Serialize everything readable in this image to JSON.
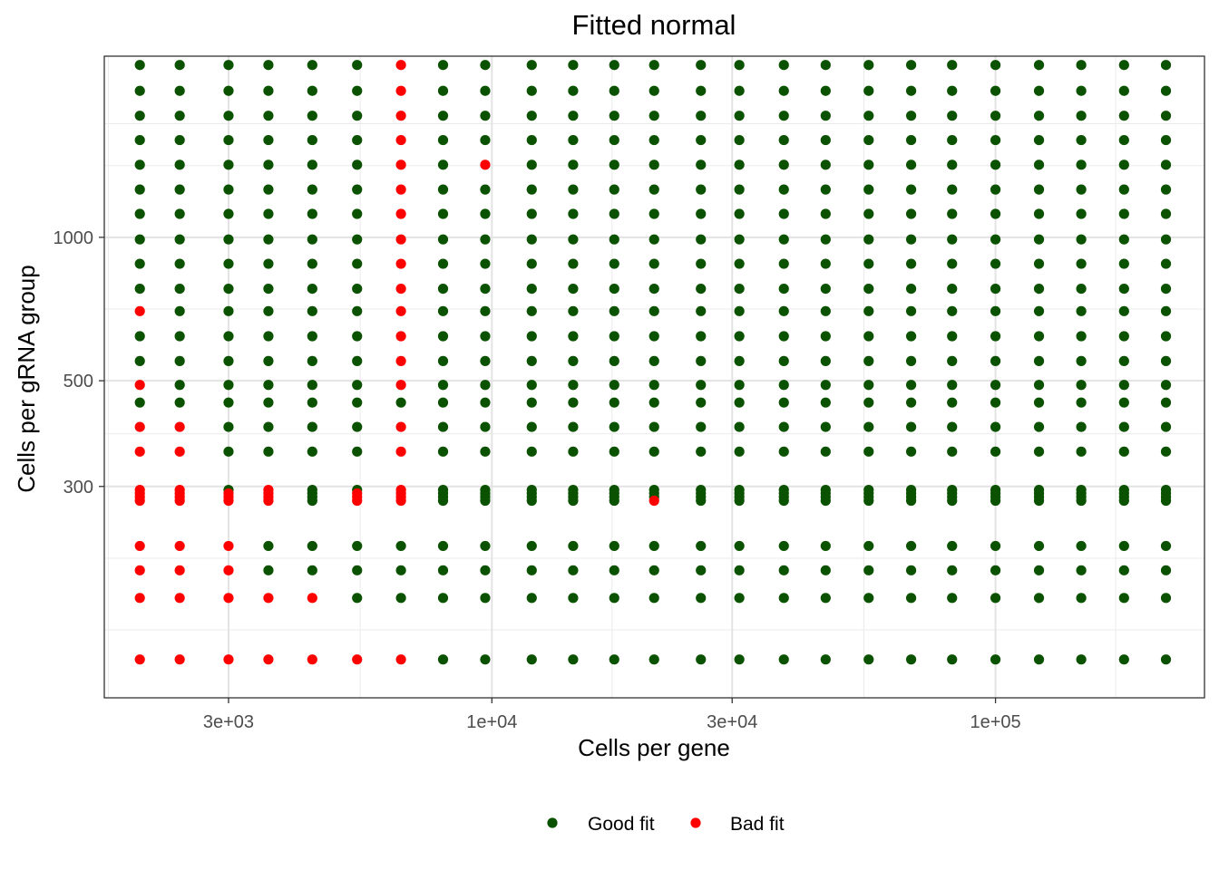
{
  "chart_data": {
    "type": "scatter",
    "title": "Fitted normal",
    "xlabel": "Cells per gene",
    "ylabel": "Cells per gRNA group",
    "x_scale": "log10",
    "y_scale": "log10",
    "xlim": [
      1700,
      260000
    ],
    "ylim": [
      108,
      2400
    ],
    "x_ticks": [
      3000,
      10000,
      30000,
      100000
    ],
    "x_tick_labels": [
      "3e+03",
      "1e+04",
      "3e+04",
      "1e+05"
    ],
    "x_minor_ticks": [
      1732,
      5477,
      17321,
      54772,
      173205
    ],
    "y_ticks": [
      300,
      500,
      1000
    ],
    "y_tick_labels": [
      "300",
      "500",
      "1000"
    ],
    "y_minor_ticks": [
      150,
      212,
      387,
      707,
      1414,
      1732
    ],
    "grid": true,
    "legend_position": "bottom",
    "legend": [
      {
        "label": "Good fit",
        "color": "#0b5200"
      },
      {
        "label": "Bad fit",
        "color": "#ff0000"
      }
    ],
    "x_values": [
      2000,
      2400,
      3000,
      3600,
      4400,
      5400,
      6600,
      8000,
      9700,
      12000,
      14500,
      17500,
      21000,
      26000,
      31000,
      38000,
      46000,
      56000,
      68000,
      82000,
      100000,
      122000,
      148000,
      180000,
      218000
    ],
    "y_values": [
      130,
      175,
      200,
      225,
      280,
      285,
      290,
      295,
      355,
      400,
      450,
      490,
      550,
      620,
      700,
      780,
      880,
      990,
      1120,
      1260,
      1420,
      1600,
      1800,
      2030,
      2300
    ],
    "series": [
      {
        "name": "Good fit",
        "color": "#0b5200",
        "note_values": "all grid points except bad_points"
      },
      {
        "name": "Bad fit",
        "color": "#ff0000"
      }
    ],
    "bad_points": [
      [
        2000,
        130
      ],
      [
        2400,
        130
      ],
      [
        3000,
        130
      ],
      [
        3600,
        130
      ],
      [
        4400,
        130
      ],
      [
        5400,
        130
      ],
      [
        6600,
        130
      ],
      [
        2000,
        175
      ],
      [
        2400,
        175
      ],
      [
        3000,
        175
      ],
      [
        3600,
        175
      ],
      [
        4400,
        175
      ],
      [
        2000,
        200
      ],
      [
        2400,
        200
      ],
      [
        3000,
        200
      ],
      [
        2000,
        225
      ],
      [
        2400,
        225
      ],
      [
        3000,
        225
      ],
      [
        2000,
        280
      ],
      [
        2400,
        280
      ],
      [
        3000,
        280
      ],
      [
        3600,
        280
      ],
      [
        5400,
        280
      ],
      [
        6600,
        280
      ],
      [
        21000,
        280
      ],
      [
        2000,
        285
      ],
      [
        2400,
        285
      ],
      [
        3000,
        285
      ],
      [
        3600,
        285
      ],
      [
        5400,
        285
      ],
      [
        6600,
        285
      ],
      [
        2000,
        290
      ],
      [
        2400,
        290
      ],
      [
        3000,
        290
      ],
      [
        3600,
        290
      ],
      [
        5400,
        290
      ],
      [
        6600,
        290
      ],
      [
        2000,
        295
      ],
      [
        2400,
        295
      ],
      [
        3600,
        295
      ],
      [
        6600,
        295
      ],
      [
        2000,
        355
      ],
      [
        2400,
        355
      ],
      [
        6600,
        355
      ],
      [
        2000,
        400
      ],
      [
        2400,
        400
      ],
      [
        6600,
        400
      ],
      [
        2000,
        490
      ],
      [
        6600,
        490
      ],
      [
        6600,
        550
      ],
      [
        6600,
        620
      ],
      [
        2000,
        700
      ],
      [
        6600,
        700
      ],
      [
        6600,
        780
      ],
      [
        6600,
        880
      ],
      [
        6600,
        990
      ],
      [
        6600,
        1120
      ],
      [
        6600,
        1260
      ],
      [
        6600,
        1420
      ],
      [
        9700,
        1420
      ],
      [
        6600,
        1600
      ],
      [
        6600,
        1800
      ],
      [
        6600,
        2030
      ],
      [
        6600,
        2300
      ]
    ]
  }
}
